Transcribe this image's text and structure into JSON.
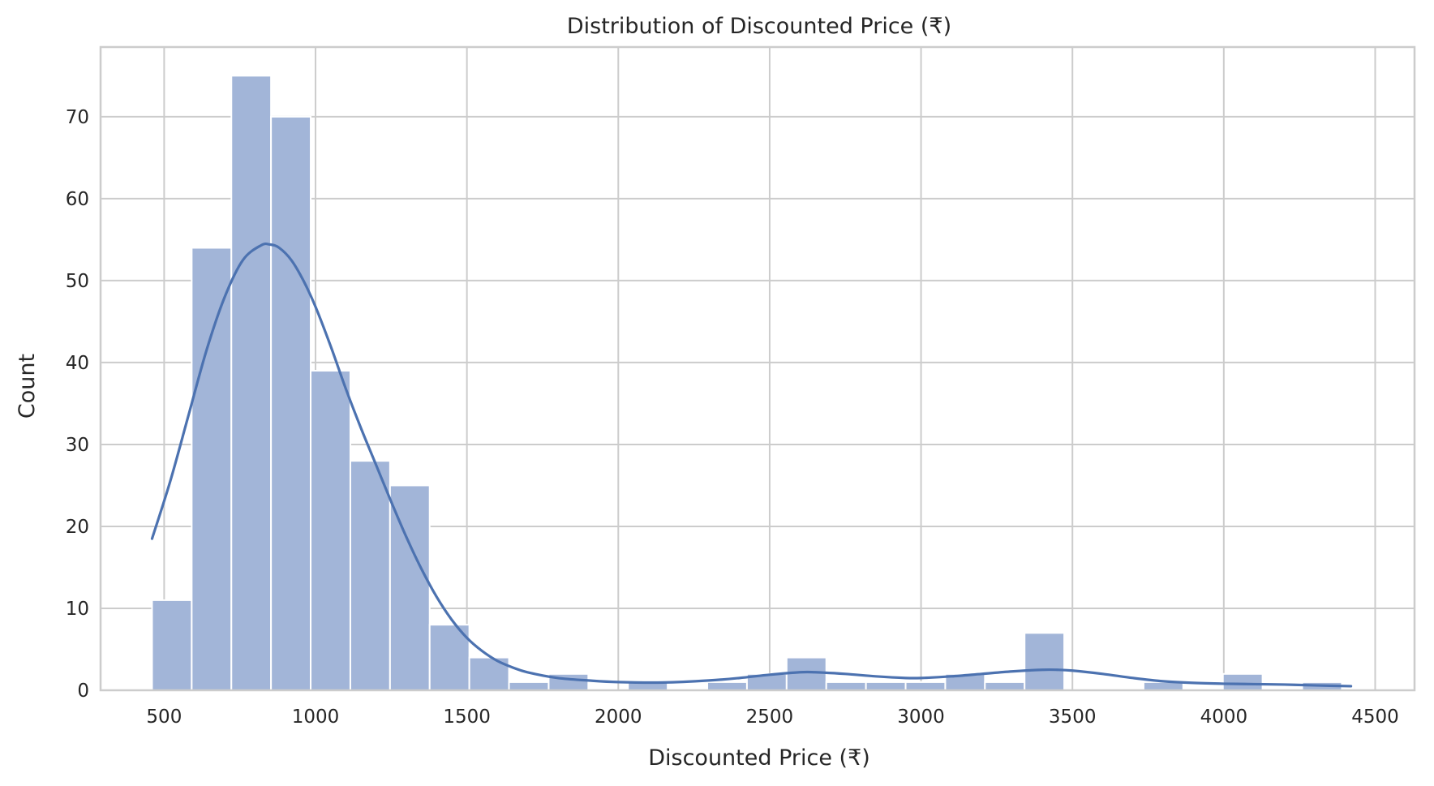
{
  "chart_data": {
    "type": "bar",
    "title": "Distribution of Discounted Price (₹)",
    "xlabel": "Discounted Price (₹)",
    "ylabel": "Count",
    "xlim": [
      290,
      4630
    ],
    "ylim": [
      0,
      78.5
    ],
    "xticks": [
      500,
      1000,
      1500,
      2000,
      2500,
      3000,
      3500,
      4000,
      4500
    ],
    "yticks": [
      0,
      10,
      20,
      30,
      40,
      50,
      60,
      70
    ],
    "grid": true,
    "bins": [
      {
        "x0": 460,
        "x1": 591,
        "count": 11
      },
      {
        "x0": 591,
        "x1": 722,
        "count": 54
      },
      {
        "x0": 722,
        "x1": 853,
        "count": 75
      },
      {
        "x0": 853,
        "x1": 984,
        "count": 70
      },
      {
        "x0": 984,
        "x1": 1115,
        "count": 39
      },
      {
        "x0": 1115,
        "x1": 1246,
        "count": 28
      },
      {
        "x0": 1246,
        "x1": 1377,
        "count": 25
      },
      {
        "x0": 1377,
        "x1": 1508,
        "count": 8
      },
      {
        "x0": 1508,
        "x1": 1639,
        "count": 4
      },
      {
        "x0": 1639,
        "x1": 1770,
        "count": 1
      },
      {
        "x0": 1770,
        "x1": 1901,
        "count": 2
      },
      {
        "x0": 1901,
        "x1": 2032,
        "count": 0
      },
      {
        "x0": 2032,
        "x1": 2163,
        "count": 1
      },
      {
        "x0": 2163,
        "x1": 2294,
        "count": 0
      },
      {
        "x0": 2294,
        "x1": 2425,
        "count": 1
      },
      {
        "x0": 2425,
        "x1": 2556,
        "count": 2
      },
      {
        "x0": 2556,
        "x1": 2687,
        "count": 4
      },
      {
        "x0": 2687,
        "x1": 2818,
        "count": 1
      },
      {
        "x0": 2818,
        "x1": 2949,
        "count": 1
      },
      {
        "x0": 2949,
        "x1": 3080,
        "count": 1
      },
      {
        "x0": 3080,
        "x1": 3211,
        "count": 2
      },
      {
        "x0": 3211,
        "x1": 3342,
        "count": 1
      },
      {
        "x0": 3342,
        "x1": 3473,
        "count": 7
      },
      {
        "x0": 3473,
        "x1": 3604,
        "count": 0
      },
      {
        "x0": 3604,
        "x1": 3735,
        "count": 0
      },
      {
        "x0": 3735,
        "x1": 3866,
        "count": 1
      },
      {
        "x0": 3866,
        "x1": 3997,
        "count": 0
      },
      {
        "x0": 3997,
        "x1": 4128,
        "count": 2
      },
      {
        "x0": 4128,
        "x1": 4259,
        "count": 0
      },
      {
        "x0": 4259,
        "x1": 4390,
        "count": 1
      }
    ],
    "kde": {
      "x": [
        460,
        520,
        580,
        640,
        700,
        760,
        820,
        850,
        880,
        920,
        960,
        1000,
        1050,
        1100,
        1150,
        1200,
        1250,
        1300,
        1350,
        1400,
        1450,
        1500,
        1550,
        1600,
        1650,
        1700,
        1800,
        1900,
        2000,
        2150,
        2300,
        2400,
        2500,
        2600,
        2650,
        2750,
        2850,
        2950,
        3000,
        3100,
        3200,
        3300,
        3400,
        3450,
        3500,
        3600,
        3700,
        3800,
        3900,
        4000,
        4100,
        4200,
        4300,
        4420
      ],
      "y": [
        18.5,
        25.5,
        33.5,
        41.5,
        48.0,
        52.5,
        54.3,
        54.4,
        54.0,
        52.5,
        50.0,
        46.8,
        42.0,
        36.8,
        32.0,
        27.5,
        23.0,
        18.7,
        14.8,
        11.4,
        8.6,
        6.4,
        4.8,
        3.6,
        2.8,
        2.2,
        1.5,
        1.2,
        1.0,
        0.95,
        1.2,
        1.5,
        1.9,
        2.2,
        2.2,
        2.0,
        1.7,
        1.5,
        1.5,
        1.7,
        2.0,
        2.3,
        2.5,
        2.5,
        2.4,
        2.0,
        1.5,
        1.1,
        0.9,
        0.8,
        0.75,
        0.7,
        0.6,
        0.5
      ]
    },
    "colors": {
      "bar_fill": "#a2b5d8",
      "bar_edge": "#ffffff",
      "kde_line": "#4c72b0",
      "grid": "#cccccc",
      "spine": "#cccccc"
    }
  }
}
